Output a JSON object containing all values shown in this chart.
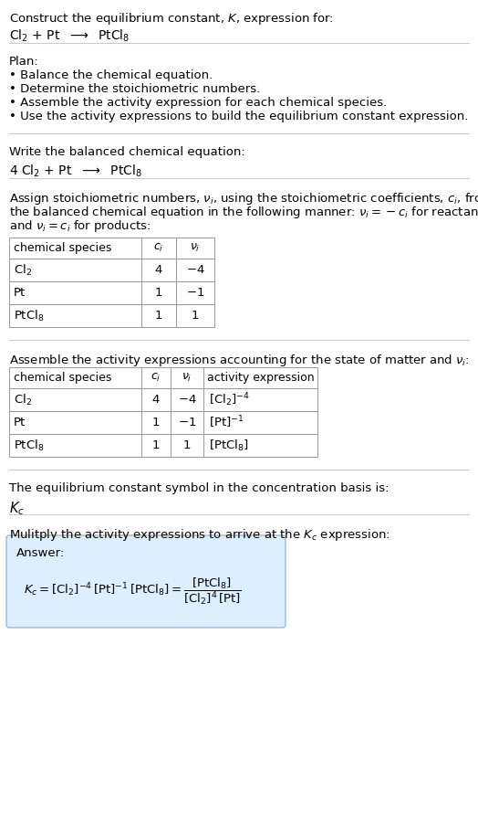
{
  "title_line1": "Construct the equilibrium constant, $K$, expression for:",
  "title_line2": "$\\mathrm{Cl_2}$ + Pt  $\\longrightarrow$  $\\mathrm{PtCl_8}$",
  "plan_header": "Plan:",
  "plan_bullets": [
    "• Balance the chemical equation.",
    "• Determine the stoichiometric numbers.",
    "• Assemble the activity expression for each chemical species.",
    "• Use the activity expressions to build the equilibrium constant expression."
  ],
  "balanced_header": "Write the balanced chemical equation:",
  "balanced_eq": "4 $\\mathrm{Cl_2}$ + Pt  $\\longrightarrow$  $\\mathrm{PtCl_8}$",
  "stoich_header_lines": [
    "Assign stoichiometric numbers, $\\nu_i$, using the stoichiometric coefficients, $c_i$, from",
    "the balanced chemical equation in the following manner: $\\nu_i = -c_i$ for reactants",
    "and $\\nu_i = c_i$ for products:"
  ],
  "table1_headers": [
    "chemical species",
    "$c_i$",
    "$\\nu_i$"
  ],
  "table1_rows": [
    [
      "$\\mathrm{Cl_2}$",
      "4",
      "$-4$"
    ],
    [
      "Pt",
      "1",
      "$-1$"
    ],
    [
      "$\\mathrm{PtCl_8}$",
      "1",
      "1"
    ]
  ],
  "activity_header": "Assemble the activity expressions accounting for the state of matter and $\\nu_i$:",
  "table2_headers": [
    "chemical species",
    "$c_i$",
    "$\\nu_i$",
    "activity expression"
  ],
  "table2_rows": [
    [
      "$\\mathrm{Cl_2}$",
      "4",
      "$-4$",
      "$[\\mathrm{Cl_2}]^{-4}$"
    ],
    [
      "Pt",
      "1",
      "$-1$",
      "$[\\mathrm{Pt}]^{-1}$"
    ],
    [
      "$\\mathrm{PtCl_8}$",
      "1",
      "1",
      "$[\\mathrm{PtCl_8}]$"
    ]
  ],
  "kc_header": "The equilibrium constant symbol in the concentration basis is:",
  "kc_symbol": "$K_c$",
  "multiply_header": "Mulitply the activity expressions to arrive at the $K_c$ expression:",
  "answer_label": "Answer:",
  "bg_color": "#ffffff",
  "text_color": "#000000",
  "separator_color": "#cccccc",
  "table_border_color": "#999999",
  "answer_box_facecolor": "#ddeeff",
  "answer_box_edgecolor": "#99bbdd",
  "font_size": 9.5,
  "small_font": 9.0
}
